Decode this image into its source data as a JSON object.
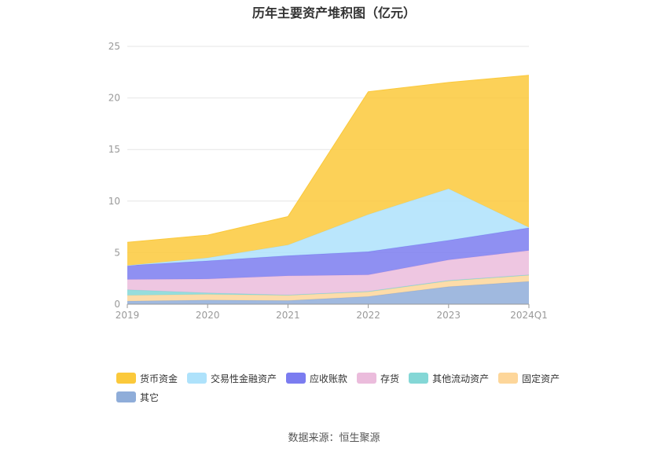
{
  "title": "历年主要资产堆积图（亿元）",
  "source": "数据来源：恒生聚源",
  "chart_data": {
    "type": "area",
    "stacked": true,
    "categories": [
      "2019",
      "2020",
      "2021",
      "2022",
      "2023",
      "2024Q1"
    ],
    "ylim": [
      0,
      25
    ],
    "yticks": [
      0,
      5,
      10,
      15,
      20,
      25
    ],
    "grid": true,
    "legend_position": "bottom",
    "series": [
      {
        "name": "其它",
        "color": "#8fadd9",
        "values": [
          0.3,
          0.4,
          0.35,
          0.75,
          1.7,
          2.2
        ]
      },
      {
        "name": "固定资产",
        "color": "#fdd69a",
        "values": [
          0.55,
          0.55,
          0.5,
          0.45,
          0.55,
          0.6
        ]
      },
      {
        "name": "其他流动资产",
        "color": "#84d7d6",
        "values": [
          0.55,
          0.15,
          0.05,
          0.05,
          0.05,
          0.05
        ]
      },
      {
        "name": "存货",
        "color": "#ebbcdc",
        "values": [
          1.0,
          1.35,
          1.85,
          1.6,
          2.0,
          2.35
        ]
      },
      {
        "name": "应收账款",
        "color": "#7b7cf0",
        "values": [
          1.35,
          1.75,
          1.95,
          2.25,
          1.9,
          2.2
        ]
      },
      {
        "name": "交易性金融资产",
        "color": "#aee2fb",
        "values": [
          0.0,
          0.3,
          1.05,
          3.6,
          5.0,
          0.05
        ]
      },
      {
        "name": "货币资金",
        "color": "#fbc93b",
        "values": [
          2.25,
          2.2,
          2.75,
          11.9,
          10.3,
          14.75
        ]
      }
    ]
  }
}
